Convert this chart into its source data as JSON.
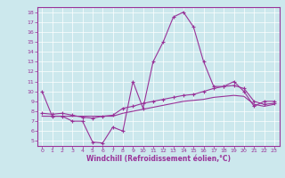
{
  "title": "",
  "xlabel": "Windchill (Refroidissement éolien,°C)",
  "bg_color": "#cce8ed",
  "line_color": "#993399",
  "grid_color": "#ffffff",
  "tick_label_color": "#993399",
  "xlim": [
    -0.5,
    23.5
  ],
  "ylim": [
    4.5,
    18.5
  ],
  "yticks": [
    5,
    6,
    7,
    8,
    9,
    10,
    11,
    12,
    13,
    14,
    15,
    16,
    17,
    18
  ],
  "xticks": [
    0,
    1,
    2,
    3,
    4,
    5,
    6,
    7,
    8,
    9,
    10,
    11,
    12,
    13,
    14,
    15,
    16,
    17,
    18,
    19,
    20,
    21,
    22,
    23
  ],
  "curve1_x": [
    0,
    1,
    2,
    3,
    4,
    5,
    6,
    7,
    8,
    9,
    10,
    11,
    12,
    13,
    14,
    15,
    16,
    17,
    18,
    19,
    20,
    21,
    22,
    23
  ],
  "curve1_y": [
    10,
    7.5,
    7.5,
    7.0,
    7.0,
    4.9,
    4.8,
    6.4,
    6.0,
    11.0,
    8.3,
    13.0,
    15.0,
    17.5,
    18.0,
    16.5,
    13.0,
    10.5,
    10.5,
    11.0,
    10.0,
    8.5,
    9.0,
    9.0
  ],
  "curve2_x": [
    0,
    1,
    2,
    3,
    4,
    5,
    6,
    7,
    8,
    9,
    10,
    11,
    12,
    13,
    14,
    15,
    16,
    17,
    18,
    19,
    20,
    21,
    22,
    23
  ],
  "curve2_y": [
    7.8,
    7.7,
    7.8,
    7.6,
    7.4,
    7.3,
    7.5,
    7.6,
    8.3,
    8.5,
    8.8,
    9.0,
    9.2,
    9.4,
    9.6,
    9.7,
    10.0,
    10.3,
    10.5,
    10.6,
    10.3,
    9.0,
    8.7,
    8.8
  ],
  "curve3_x": [
    0,
    1,
    2,
    3,
    4,
    5,
    6,
    7,
    8,
    9,
    10,
    11,
    12,
    13,
    14,
    15,
    16,
    17,
    18,
    19,
    20,
    21,
    22,
    23
  ],
  "curve3_y": [
    7.5,
    7.5,
    7.5,
    7.5,
    7.5,
    7.5,
    7.5,
    7.5,
    7.8,
    8.0,
    8.2,
    8.4,
    8.6,
    8.8,
    9.0,
    9.1,
    9.2,
    9.4,
    9.5,
    9.6,
    9.5,
    8.7,
    8.5,
    8.7
  ],
  "tick_fontsize": 4.5,
  "xlabel_fontsize": 5.5
}
